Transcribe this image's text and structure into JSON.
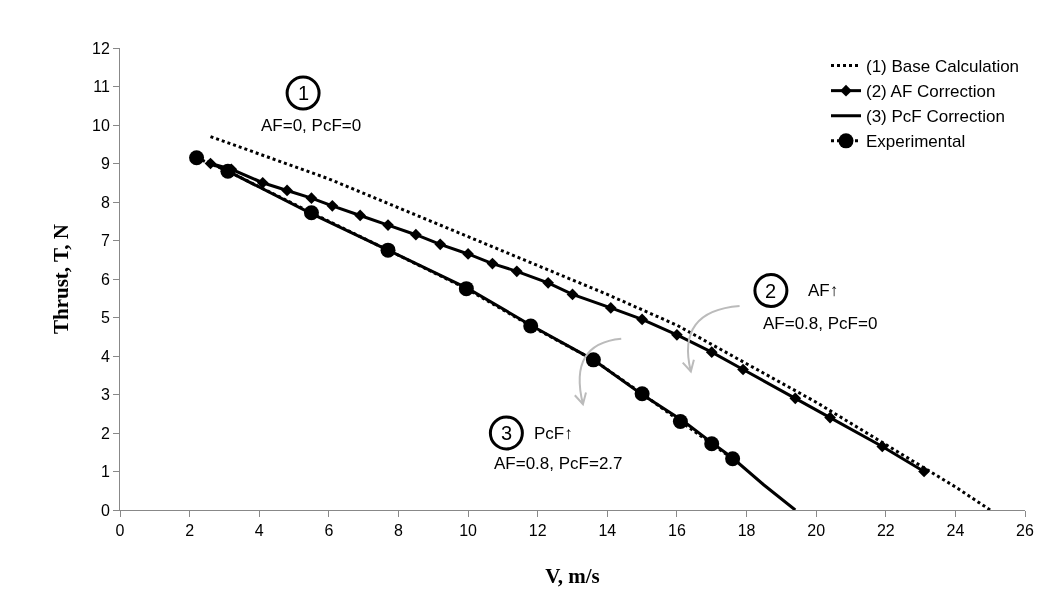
{
  "chart_data": {
    "type": "line",
    "xlabel": "V, m/s",
    "ylabel": "Thrust, T, N",
    "xlim": [
      0,
      26
    ],
    "xticks": [
      0,
      2,
      4,
      6,
      8,
      10,
      12,
      14,
      16,
      18,
      20,
      22,
      24,
      26
    ],
    "ylim": [
      0,
      12
    ],
    "yticks": [
      0,
      1,
      2,
      3,
      4,
      5,
      6,
      7,
      8,
      9,
      10,
      11,
      12
    ],
    "grid": false,
    "legend": "top right",
    "series": [
      {
        "name": "(1) Base Calculation",
        "color": "#000000",
        "line_style": "dotted",
        "marker": "none",
        "x": [
          2.6,
          6,
          10,
          14,
          16,
          18,
          20,
          22,
          24,
          25
        ],
        "values": [
          9.7,
          8.6,
          7.1,
          5.6,
          4.8,
          3.8,
          2.8,
          1.7,
          0.6,
          0
        ]
      },
      {
        "name": "(2) AF Correction",
        "color": "#000000",
        "line_style": "solid",
        "marker": "diamond",
        "x": [
          2.6,
          3.2,
          4.1,
          4.8,
          5.5,
          6.1,
          6.9,
          7.7,
          8.5,
          9.2,
          10,
          10.7,
          11.4,
          12.3,
          13,
          14.1,
          15,
          16,
          17,
          17.9,
          19.4,
          20.4,
          21.9,
          23.1
        ],
        "values": [
          9.0,
          8.85,
          8.5,
          8.3,
          8.1,
          7.9,
          7.65,
          7.4,
          7.15,
          6.9,
          6.65,
          6.4,
          6.2,
          5.9,
          5.6,
          5.25,
          4.95,
          4.55,
          4.1,
          3.65,
          2.9,
          2.4,
          1.65,
          1.0
        ]
      },
      {
        "name": "(3) PcF Correction",
        "color": "#000000",
        "line_style": "solid",
        "marker": "none",
        "x": [
          2.5,
          3.1,
          5.5,
          7.7,
          10,
          11.8,
          13.6,
          15,
          16.2,
          17,
          17.6,
          18.5,
          19.4
        ],
        "values": [
          9.05,
          8.8,
          7.7,
          6.75,
          5.75,
          4.8,
          3.9,
          3.0,
          2.3,
          1.75,
          1.35,
          0.65,
          0
        ]
      },
      {
        "name": "Experimental",
        "color": "#000000",
        "line_style": "dotted",
        "marker": "circle",
        "x": [
          2.2,
          3.1,
          5.5,
          7.7,
          9.95,
          11.8,
          13.6,
          15,
          16.1,
          17,
          17.6
        ],
        "values": [
          9.15,
          8.8,
          7.72,
          6.75,
          5.75,
          4.78,
          3.9,
          3.02,
          2.3,
          1.72,
          1.33
        ]
      }
    ],
    "annotations": [
      "1",
      "AF=0, PcF=0",
      "2",
      "AF↑",
      "AF=0.8, PcF=0",
      "3",
      "PcF↑",
      "AF=0.8, PcF=2.7"
    ]
  }
}
